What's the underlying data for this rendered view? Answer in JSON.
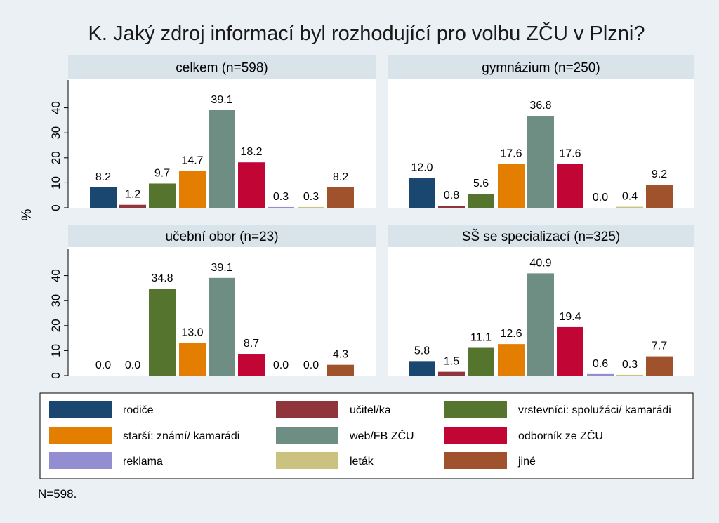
{
  "title": "K. Jaký zdroj informací byl rozhodující pro volbu ZČU v Plzni?",
  "ylabel": "%",
  "note": "N=598.",
  "colors": [
    "#1a476f",
    "#90353b",
    "#55752f",
    "#e37e00",
    "#6e8e84",
    "#c10534",
    "#938dd2",
    "#cac27e",
    "#a0522d"
  ],
  "chart_data": {
    "type": "bar",
    "categories": [
      "rodiče",
      "učitel/ka",
      "vrstevníci: spolužáci/ kamarádi",
      "starší: známí/ kamarádi",
      "web/FB ZČU",
      "odborník ze ZČU",
      "reklama",
      "leták",
      "jiné"
    ],
    "ylim": [
      0,
      50
    ],
    "yticks": [
      "0",
      "10",
      "20",
      "30",
      "40"
    ],
    "panels": [
      {
        "title": "celkem (n=598)",
        "values": [
          8.2,
          1.2,
          9.7,
          14.7,
          39.1,
          18.2,
          0.3,
          0.3,
          8.2
        ],
        "labels": [
          "8.2",
          "1.2",
          "9.7",
          "14.7",
          "39.1",
          "18.2",
          "0.3",
          "0.3",
          "8.2"
        ]
      },
      {
        "title": "gymnázium (n=250)",
        "values": [
          12.0,
          0.8,
          5.6,
          17.6,
          36.8,
          17.6,
          0.0,
          0.4,
          9.2
        ],
        "labels": [
          "12.0",
          "0.8",
          "5.6",
          "17.6",
          "36.8",
          "17.6",
          "0.0",
          "0.4",
          "9.2"
        ]
      },
      {
        "title": "učební obor (n=23)",
        "values": [
          0.0,
          0.0,
          34.8,
          13.0,
          39.1,
          8.7,
          0.0,
          0.0,
          4.3
        ],
        "labels": [
          "0.0",
          "0.0",
          "34.8",
          "13.0",
          "39.1",
          "8.7",
          "0.0",
          "0.0",
          "4.3"
        ]
      },
      {
        "title": "SŠ se specializací (n=325)",
        "values": [
          5.8,
          1.5,
          11.1,
          12.6,
          40.9,
          19.4,
          0.6,
          0.3,
          7.7
        ],
        "labels": [
          "5.8",
          "1.5",
          "11.1",
          "12.6",
          "40.9",
          "19.4",
          "0.6",
          "0.3",
          "7.7"
        ]
      }
    ],
    "grid": false,
    "legend_position": "bottom"
  }
}
